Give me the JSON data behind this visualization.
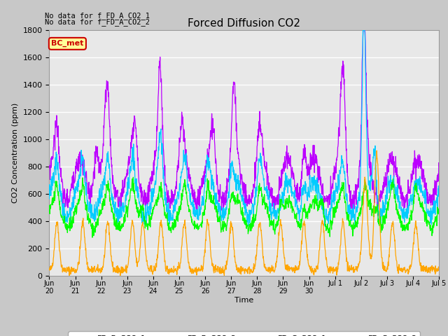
{
  "title": "Forced Diffusion CO2",
  "ylabel": "CO2 Concentration (ppm)",
  "xlabel": "Time",
  "ylim": [
    0,
    1800
  ],
  "yticks": [
    0,
    200,
    400,
    600,
    800,
    1000,
    1200,
    1400,
    1600,
    1800
  ],
  "fig_facecolor": "#c8c8c8",
  "plot_facecolor": "#e8e8e8",
  "colors": {
    "FD_B_CO2_1": "#00ff00",
    "FD_B_CO2_2": "#ffa500",
    "FD_C_CO2_1": "#bb00ff",
    "FD_C_CO2_2": "#00ccff"
  },
  "annotation_text1": "No data for f_FD_A_CO2_1",
  "annotation_text2": "No data for f_FD_A_CO2_2",
  "legend_box_text": "BC_met",
  "legend_box_facecolor": "#ffff99",
  "legend_box_edgecolor": "#cc0000",
  "legend_box_textcolor": "#cc0000"
}
